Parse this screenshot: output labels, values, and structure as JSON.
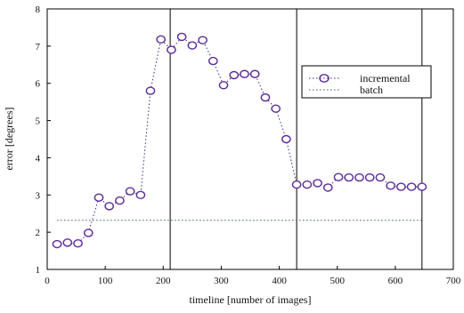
{
  "chart_data": {
    "type": "line",
    "title": "",
    "xlabel": "timeline [number of images]",
    "ylabel": "error [degrees]",
    "xlim": [
      0,
      700
    ],
    "ylim": [
      1,
      8
    ],
    "xticks": [
      0,
      100,
      200,
      300,
      400,
      500,
      600,
      700
    ],
    "yticks": [
      1,
      2,
      3,
      4,
      5,
      6,
      7,
      8
    ],
    "grid": false,
    "legend_position": "top-right",
    "vertical_lines": [
      212,
      430,
      646
    ],
    "series": [
      {
        "name": "incremental",
        "style": "dotted-line-with-circle-markers",
        "color": "#3a2a7a",
        "marker_color": "#5b2a9a",
        "x": [
          17,
          35,
          53,
          71,
          89,
          107,
          125,
          143,
          161,
          178,
          196,
          214,
          232,
          250,
          268,
          286,
          304,
          322,
          340,
          358,
          376,
          394,
          412,
          430,
          448,
          466,
          484,
          502,
          520,
          538,
          556,
          574,
          592,
          610,
          628,
          646
        ],
        "y": [
          1.68,
          1.72,
          1.7,
          1.98,
          2.93,
          2.7,
          2.85,
          3.1,
          3.0,
          5.8,
          7.18,
          6.9,
          7.25,
          7.02,
          7.16,
          6.6,
          5.95,
          6.22,
          6.25,
          6.25,
          5.62,
          5.32,
          4.5,
          3.28,
          3.28,
          3.32,
          3.2,
          3.48,
          3.47,
          3.47,
          3.47,
          3.47,
          3.25,
          3.22,
          3.22,
          3.22
        ]
      },
      {
        "name": "batch",
        "style": "dotted-line",
        "color": "#2f6b4f",
        "x": [
          17,
          646
        ],
        "y": [
          2.32,
          2.32
        ]
      }
    ]
  }
}
